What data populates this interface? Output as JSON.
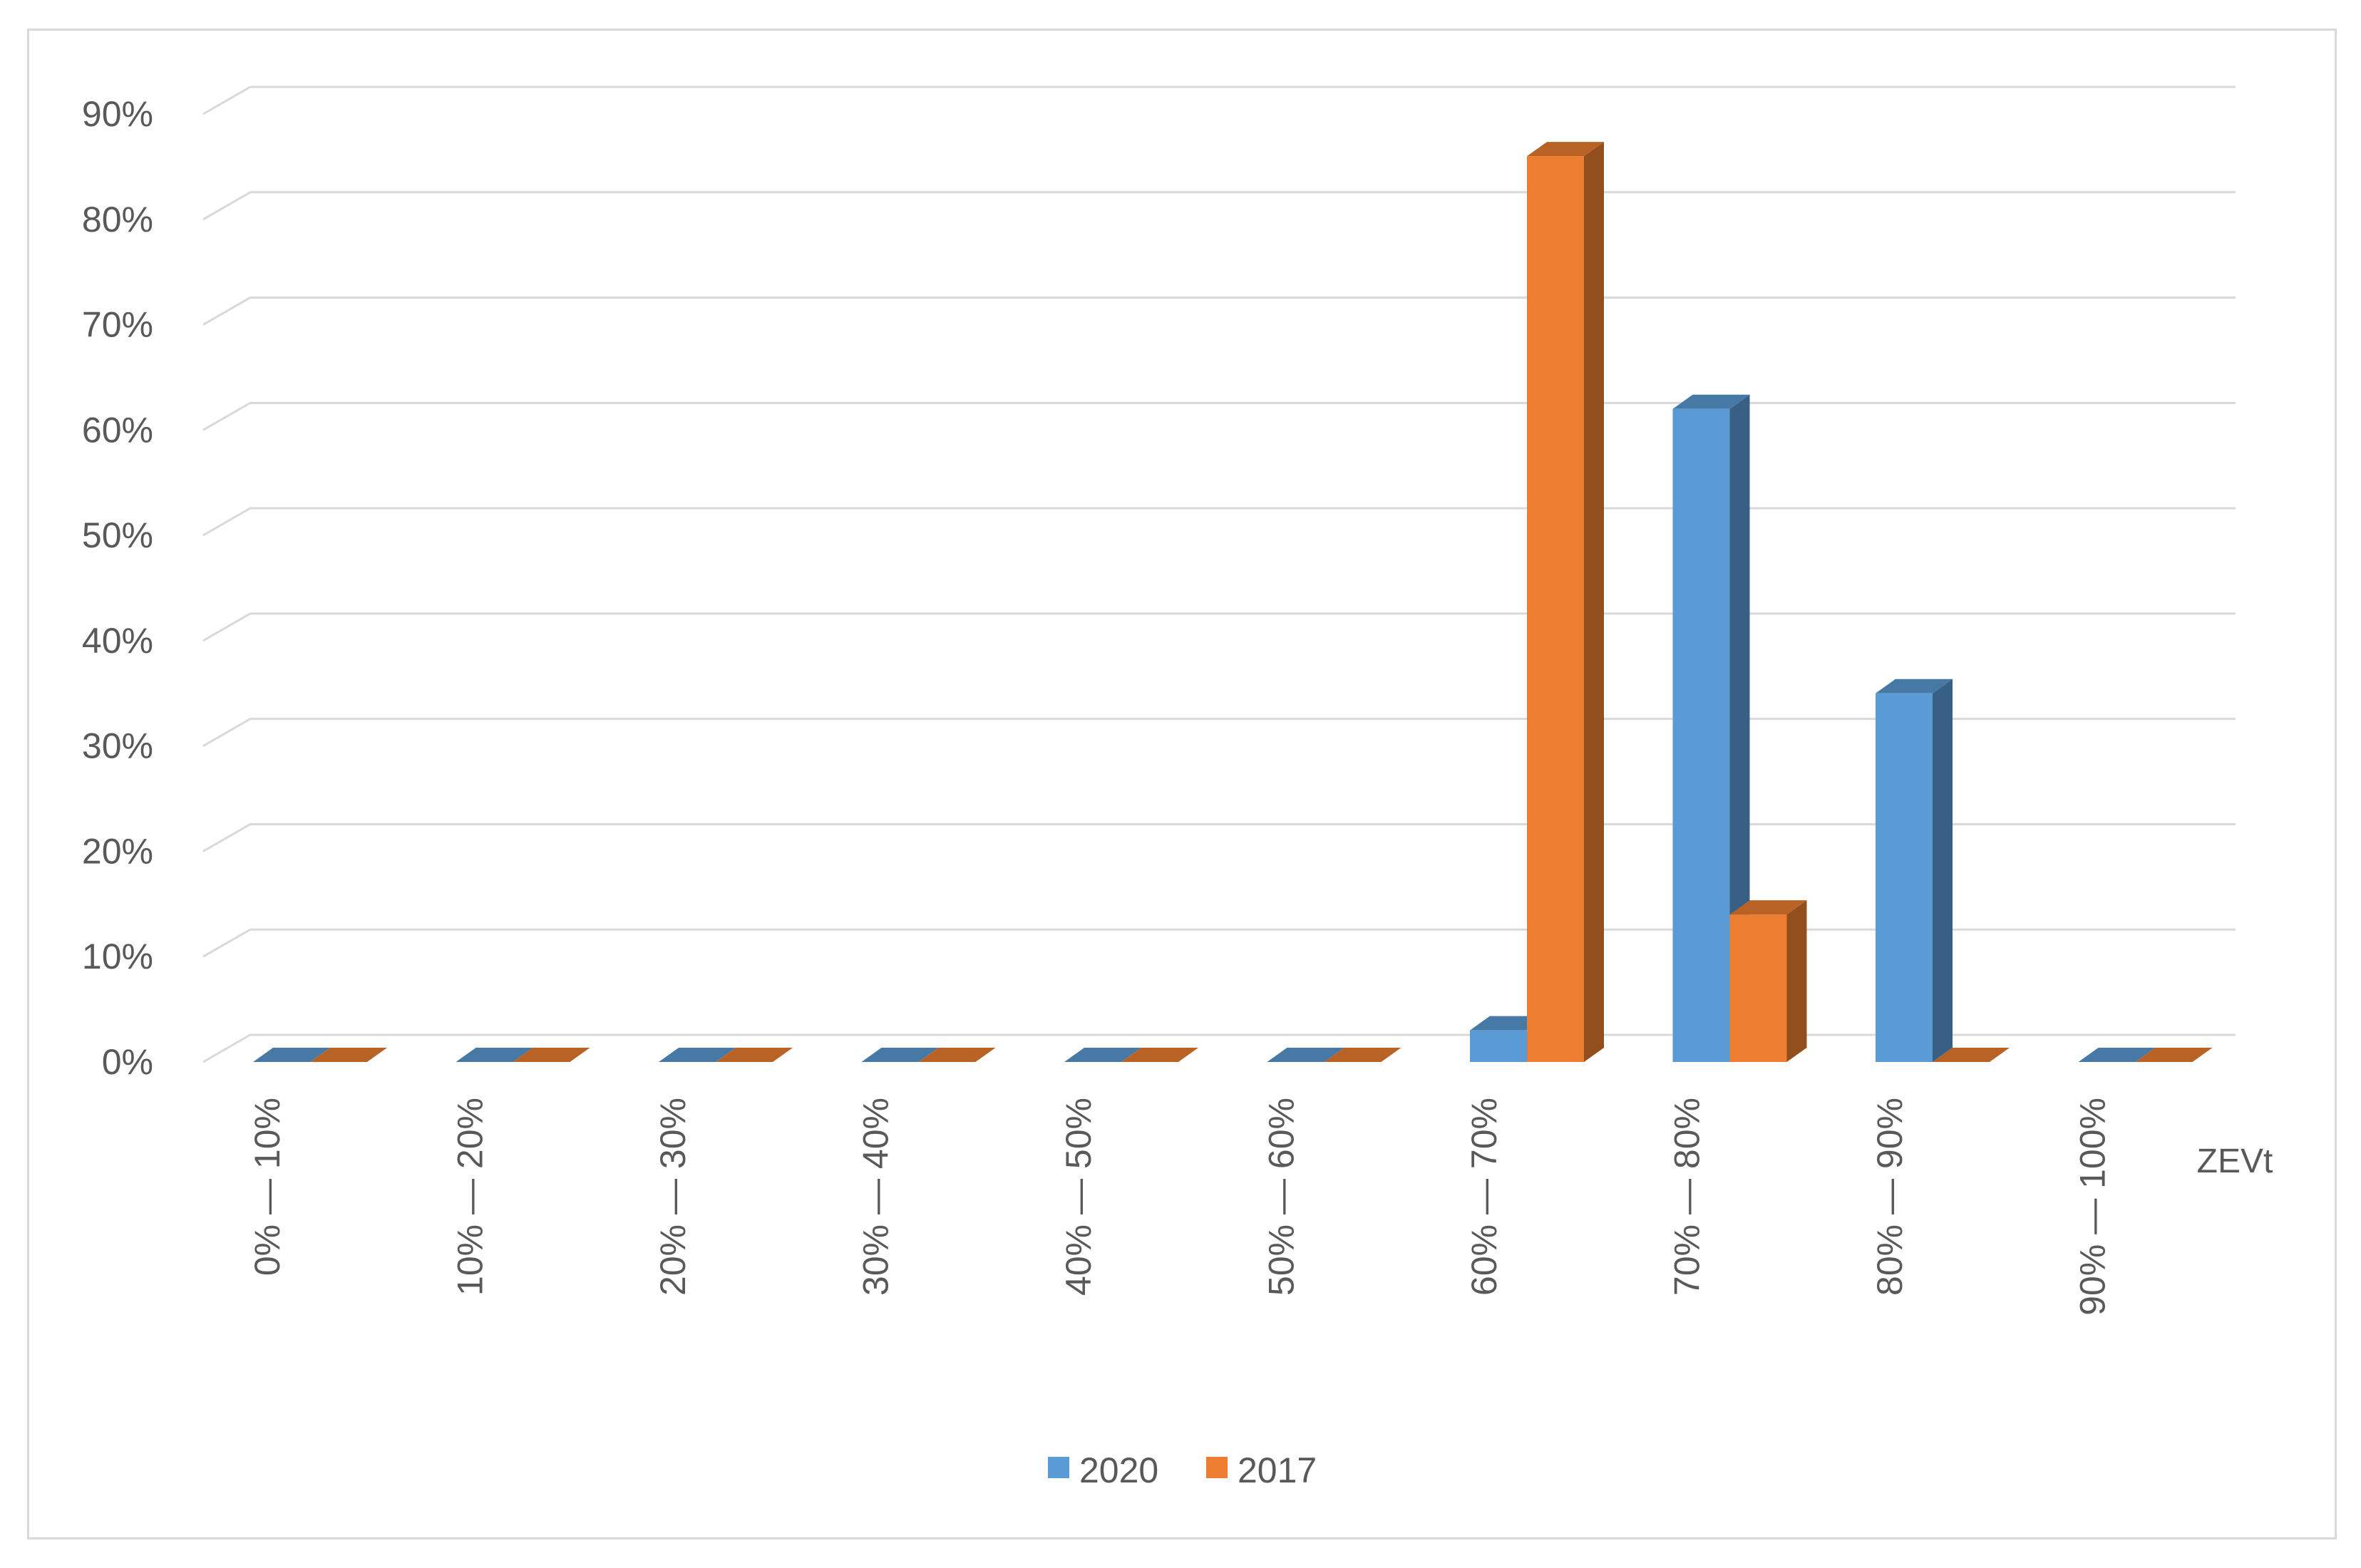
{
  "chart_data": {
    "type": "bar",
    "style": "3d-clustered-column",
    "title": "",
    "xlabel": "ZEVt",
    "ylabel": "",
    "ylim": [
      0,
      0.9
    ],
    "yticks": [
      "0%",
      "10%",
      "20%",
      "30%",
      "40%",
      "50%",
      "60%",
      "70%",
      "80%",
      "90%"
    ],
    "categories": [
      "0% — 10%",
      "10% — 20%",
      "20% — 30%",
      "30% — 40%",
      "40% — 50%",
      "50% — 60%",
      "60% — 70%",
      "70% — 80%",
      "80% — 90%",
      "90% — 100%"
    ],
    "series": [
      {
        "name": "2020",
        "color": "#5b9bd5",
        "values": [
          0,
          0,
          0,
          0,
          0,
          0,
          0.03,
          0.62,
          0.35,
          0
        ]
      },
      {
        "name": "2017",
        "color": "#ed7d31",
        "values": [
          0,
          0,
          0,
          0,
          0,
          0,
          0.86,
          0.14,
          0,
          0
        ]
      }
    ],
    "grid": true,
    "legend": "bottom-center"
  }
}
